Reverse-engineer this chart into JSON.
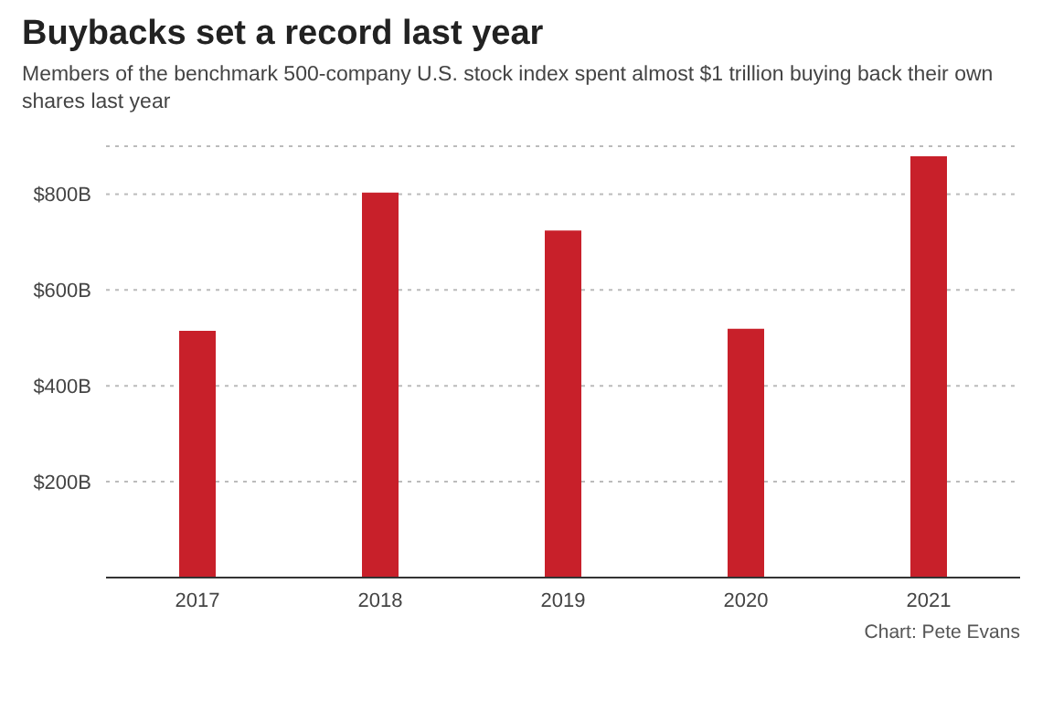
{
  "chart_data": {
    "type": "bar",
    "title": "Buybacks set a record last year",
    "subtitle": "Members of the benchmark 500-company U.S. stock index spent almost $1 trillion buying back their own shares last year",
    "categories": [
      "2017",
      "2018",
      "2019",
      "2020",
      "2021"
    ],
    "values": [
      515,
      803,
      724,
      519,
      879
    ],
    "color": "#c8202a",
    "ylim": [
      0,
      900
    ],
    "yticks": [
      {
        "value": 0,
        "label": null
      },
      {
        "value": 200,
        "label": "$200B"
      },
      {
        "value": 400,
        "label": "$400B"
      },
      {
        "value": 600,
        "label": "$600B"
      },
      {
        "value": 800,
        "label": "$800B"
      }
    ],
    "grid": "y",
    "annotations": [
      "Chart: Pete Evans"
    ]
  }
}
